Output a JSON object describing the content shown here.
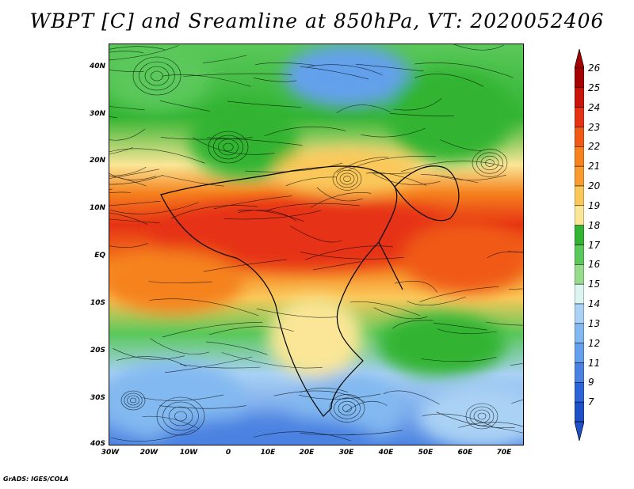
{
  "title": "WBPT [C] and Sreamline at 850hPa, VT: 2020052406",
  "y_axis_labels": [
    "40N",
    "30N",
    "20N",
    "10N",
    "EQ",
    "10S",
    "20S",
    "30S",
    "40S"
  ],
  "x_axis_labels": [
    "30W",
    "20W",
    "10W",
    "0",
    "10E",
    "20E",
    "30E",
    "40E",
    "50E",
    "60E",
    "70E"
  ],
  "colorbar": {
    "levels": [
      "26",
      "25",
      "24",
      "23",
      "22",
      "21",
      "20",
      "19",
      "18",
      "17",
      "16",
      "15",
      "14",
      "13",
      "12",
      "11",
      "9",
      "7"
    ],
    "colors": [
      "#a50000",
      "#c8140a",
      "#e63214",
      "#f05a14",
      "#f5821e",
      "#fa9b32",
      "#fac85a",
      "#fae696",
      "#32b432",
      "#5ac85a",
      "#96dc8c",
      "#dcf5f0",
      "#aad2f5",
      "#82b9f0",
      "#64a0eb",
      "#4b82e1",
      "#2d64d7",
      "#1e50c8"
    ]
  },
  "credit": "GrADS: IGES/COLA"
}
